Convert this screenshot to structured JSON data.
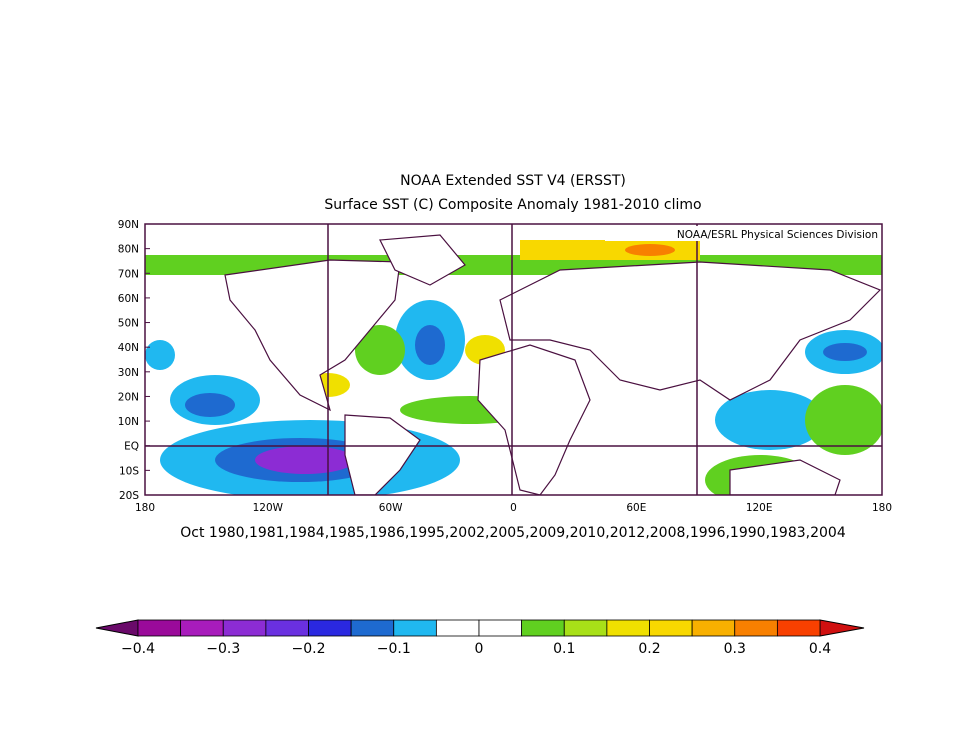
{
  "title": "NOAA Extended SST V4 (ERSST)",
  "subtitle": "Surface SST (C) Composite Anomaly 1981-2010 climo",
  "credit": "NOAA/ESRL Physical Sciences Division",
  "lat_labels": [
    "90N",
    "80N",
    "70N",
    "60N",
    "50N",
    "40N",
    "30N",
    "20N",
    "10N",
    "EQ",
    "10S",
    "20S"
  ],
  "lon_labels": [
    "180",
    "120W",
    "60W",
    "0",
    "60E",
    "120E",
    "180"
  ],
  "dates": "Oct 1980,1981,1984,1985,1986,1995,2002,2005,2009,2010,2012,2008,1996,1990,1983,2004",
  "colorbar": {
    "labels": [
      "−0.4",
      "−0.3",
      "−0.2",
      "−0.1",
      "0",
      "0.1",
      "0.2",
      "0.3",
      "0.4"
    ],
    "low_color": "#6a0a6a",
    "high_color": "#d01010",
    "colors": [
      "#9a0a9a",
      "#a81cbc",
      "#8c2cd4",
      "#6a30e0",
      "#2a28e0",
      "#1e6ad0",
      "#20b8f0",
      "#ffffff",
      "#ffffff",
      "#60d020",
      "#a8e018",
      "#f0e000",
      "#f8d800",
      "#f8b000",
      "#f88000",
      "#f84000"
    ]
  }
}
